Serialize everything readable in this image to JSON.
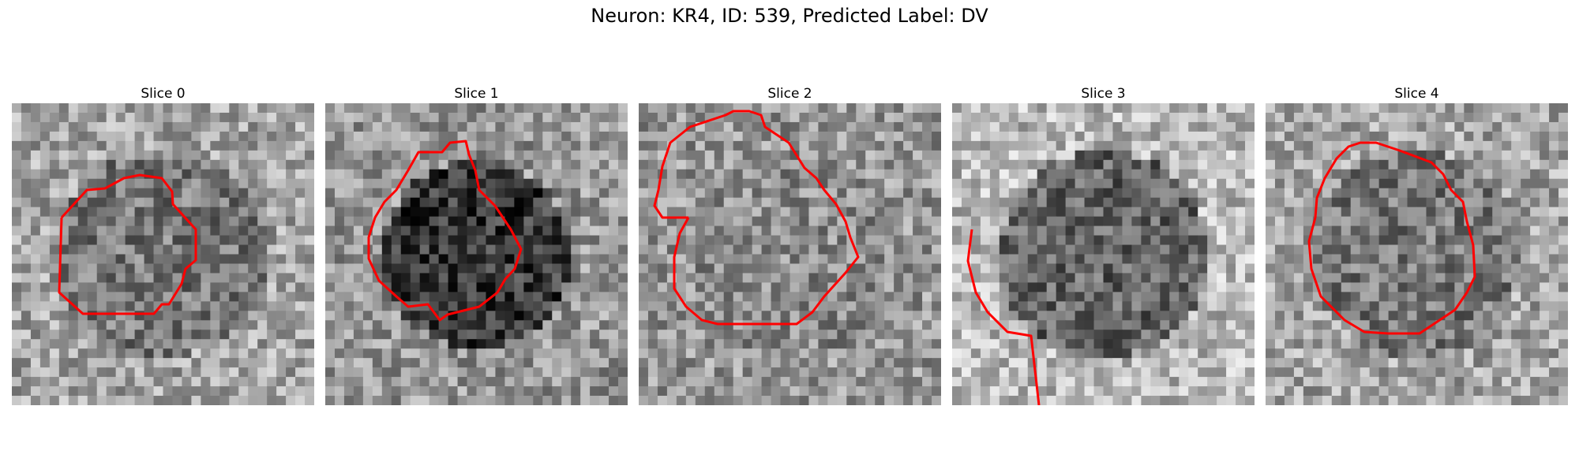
{
  "figure": {
    "title": "Neuron: KR4, ID: 539, Predicted Label: DV"
  },
  "panels": [
    {
      "title": "Slice 0",
      "bg_mean": 165,
      "inner_mean": 120,
      "contour_color": "#ff0000"
    },
    {
      "title": "Slice 1",
      "bg_mean": 150,
      "inner_mean": 55,
      "contour_color": "#ff0000"
    },
    {
      "title": "Slice 2",
      "bg_mean": 150,
      "inner_mean": 140,
      "contour_color": "#ff0000"
    },
    {
      "title": "Slice 3",
      "bg_mean": 185,
      "inner_mean": 100,
      "contour_color": "#ff0000"
    },
    {
      "title": "Slice 4",
      "bg_mean": 165,
      "inner_mean": 120,
      "contour_color": "#ff0000"
    }
  ]
}
